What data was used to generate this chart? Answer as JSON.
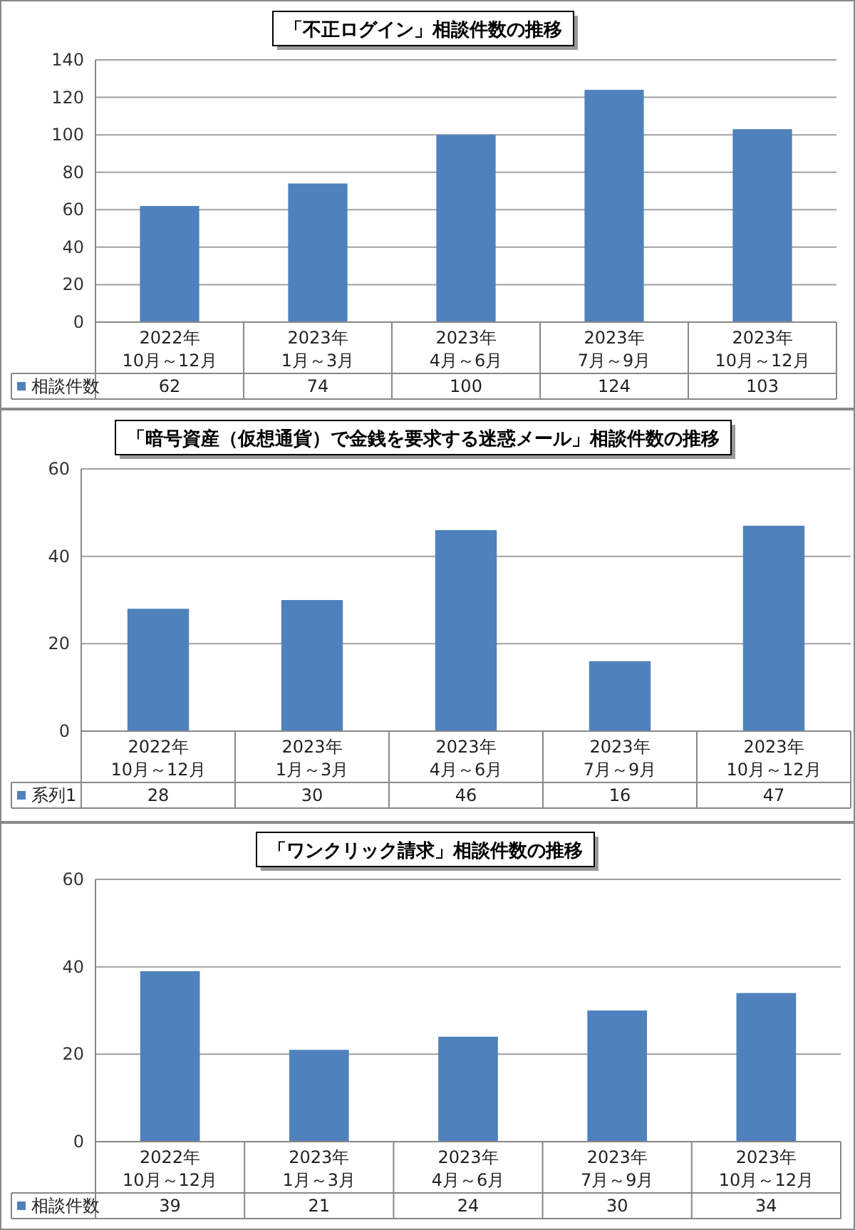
{
  "chart_data": [
    {
      "type": "bar",
      "title": "「不正ログイン」相談件数の推移",
      "categories": [
        "2022年\n10月～12月",
        "2023年\n1月～3月",
        "2023年\n4月～6月",
        "2023年\n7月～9月",
        "2023年\n10月～12月"
      ],
      "series": [
        {
          "name": "相談件数",
          "color": "#4f81bd",
          "values": [
            62,
            74,
            100,
            124,
            103
          ]
        }
      ],
      "ylim": [
        0,
        140
      ],
      "yticks": [
        0,
        20,
        40,
        60,
        80,
        100,
        120,
        140
      ],
      "grid": "y",
      "data_labels": true,
      "legend": "bottom"
    },
    {
      "type": "bar",
      "title": "「暗号資産（仮想通貨）で金銭を要求する迷惑メール」相談件数の推移",
      "categories": [
        "2022年\n10月～12月",
        "2023年\n1月～3月",
        "2023年\n4月～6月",
        "2023年\n7月～9月",
        "2023年\n10月～12月"
      ],
      "series": [
        {
          "name": "系列1",
          "color": "#4f81bd",
          "values": [
            28,
            30,
            46,
            16,
            47
          ]
        }
      ],
      "ylim": [
        0,
        60
      ],
      "yticks": [
        0,
        20,
        40,
        60
      ],
      "grid": "y",
      "data_labels": true,
      "legend": "bottom"
    },
    {
      "type": "bar",
      "title": "「ワンクリック請求」相談件数の推移",
      "categories": [
        "2022年\n10月～12月",
        "2023年\n1月～3月",
        "2023年\n4月～6月",
        "2023年\n7月～9月",
        "2023年\n10月～12月"
      ],
      "series": [
        {
          "name": "相談件数",
          "color": "#4f81bd",
          "values": [
            39,
            21,
            24,
            30,
            34
          ]
        }
      ],
      "ylim": [
        0,
        60
      ],
      "yticks": [
        0,
        20,
        40,
        60
      ],
      "grid": "y",
      "data_labels": true,
      "legend": "bottom"
    }
  ]
}
